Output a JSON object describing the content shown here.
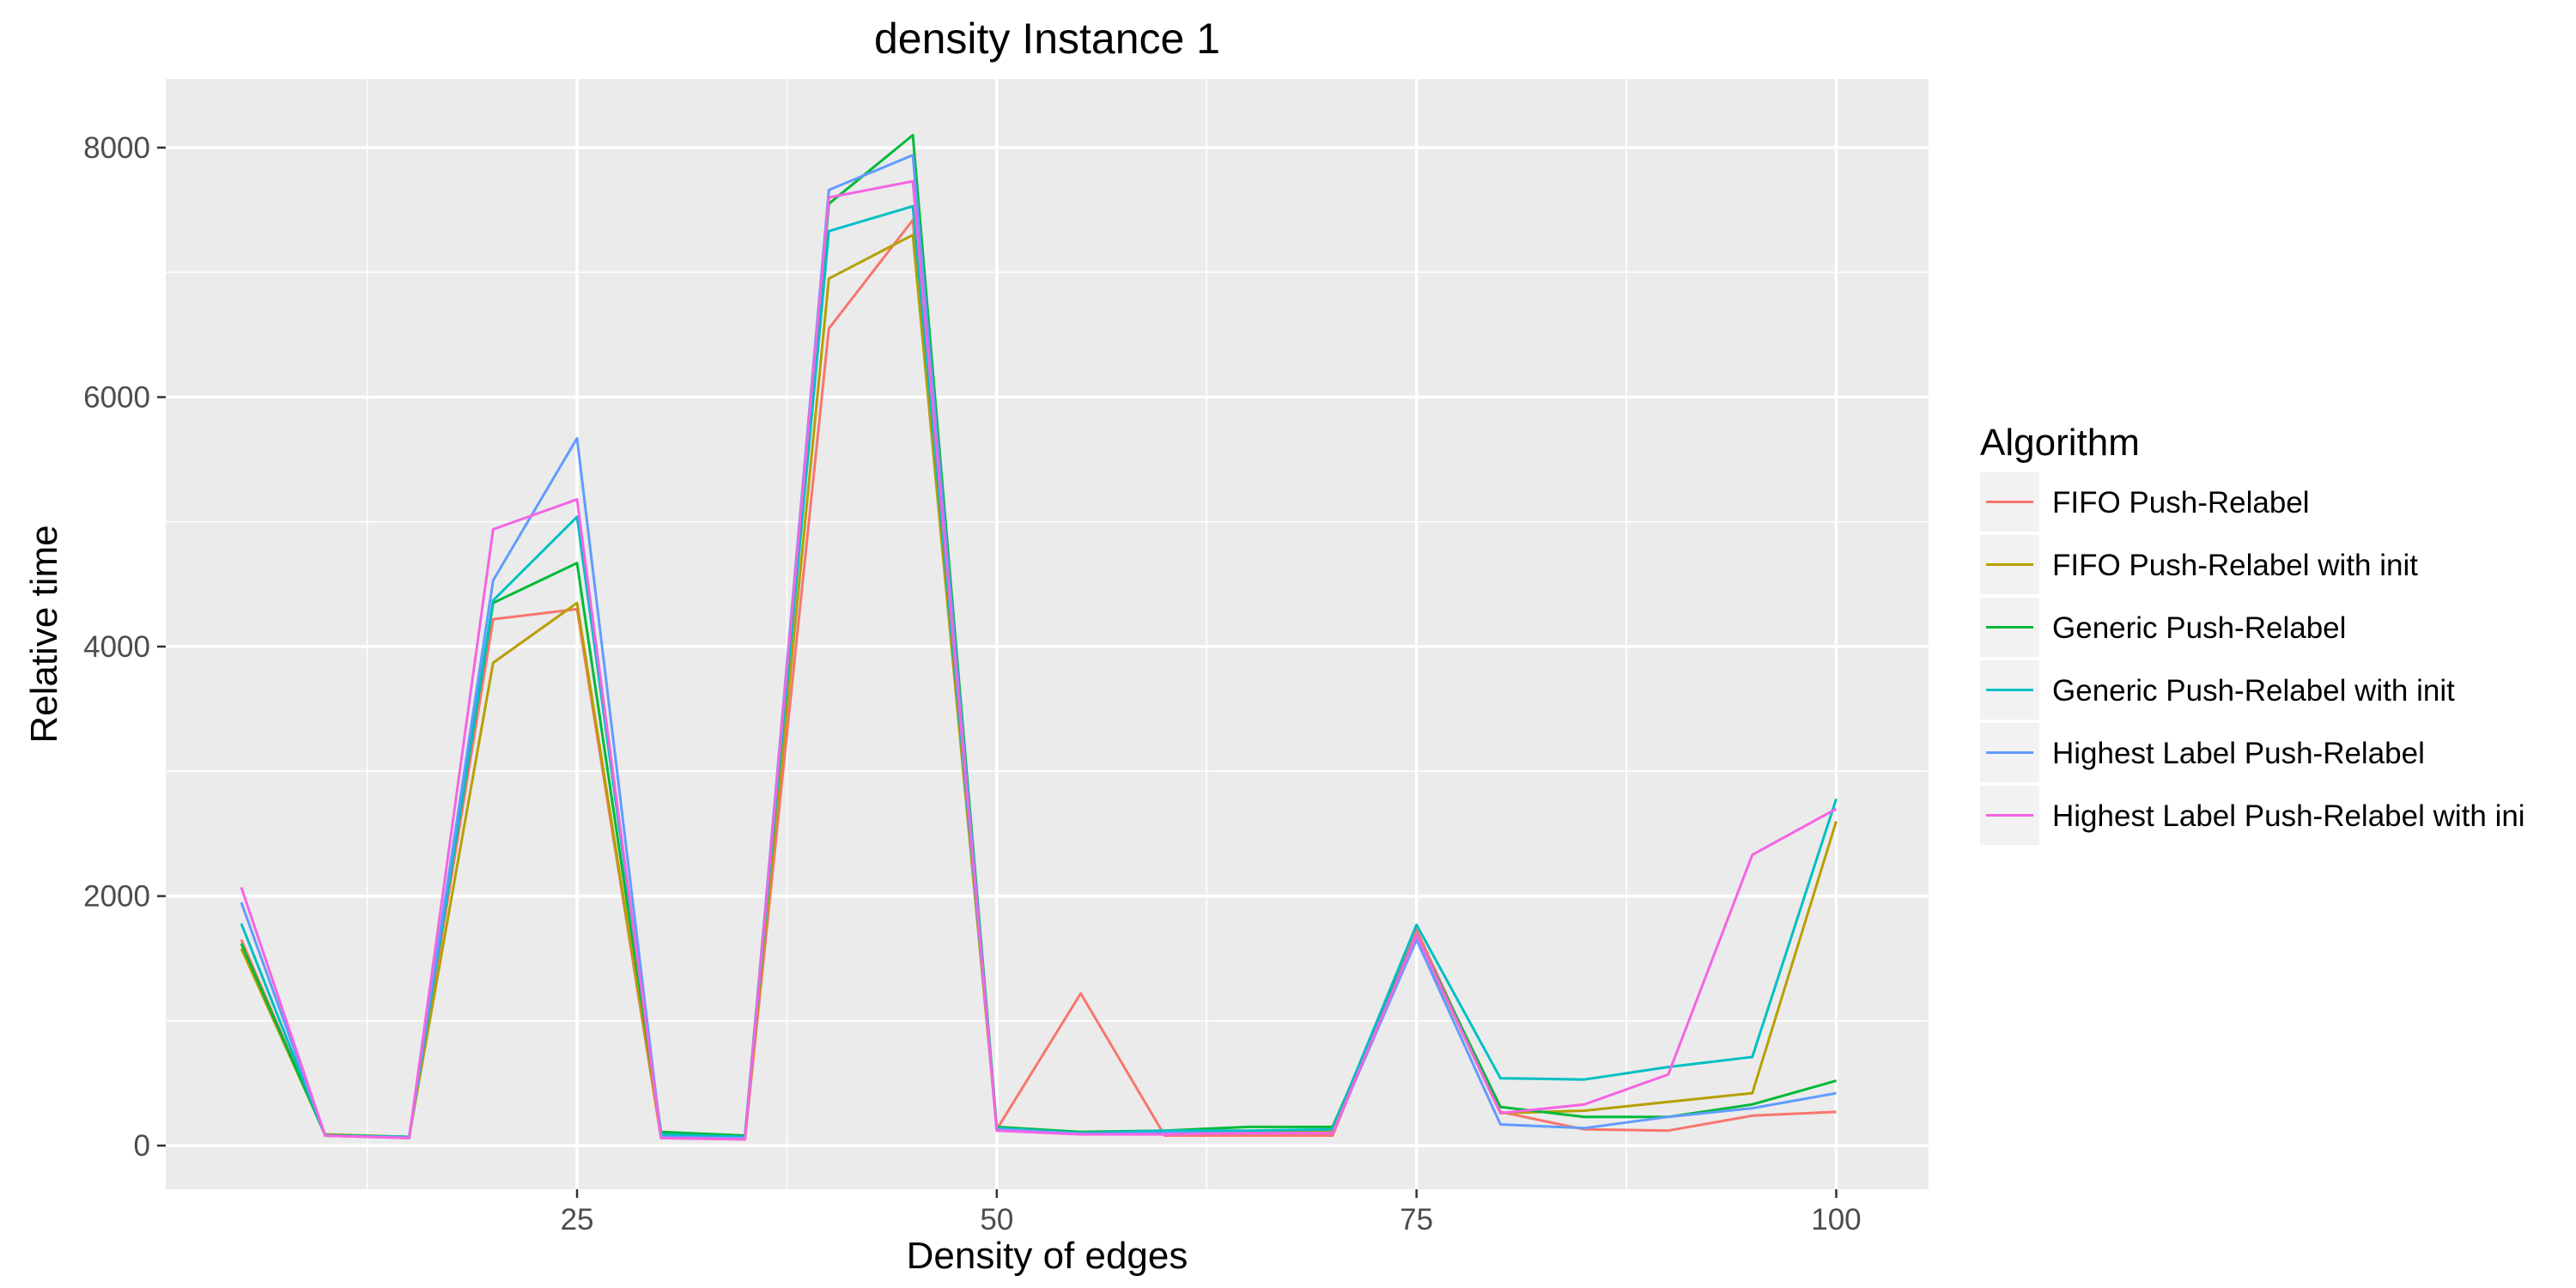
{
  "chart_data": {
    "type": "line",
    "title": "density Instance 1",
    "xlabel": "Density of edges",
    "ylabel": "Relative time",
    "xlim": [
      0.5,
      105.5
    ],
    "ylim": [
      -350,
      8550
    ],
    "x_ticks": [
      25,
      50,
      75,
      100
    ],
    "x_minor": [
      12.5,
      37.5,
      62.5,
      87.5
    ],
    "y_ticks": [
      0,
      2000,
      4000,
      6000,
      8000
    ],
    "y_minor": [
      1000,
      3000,
      5000,
      7000
    ],
    "grid": true,
    "legend": {
      "title": "Algorithm",
      "position": "right"
    },
    "x": [
      5,
      10,
      15,
      20,
      25,
      30,
      35,
      40,
      45,
      50,
      55,
      60,
      65,
      70,
      75,
      80,
      85,
      90,
      95,
      100
    ],
    "series": [
      {
        "name": "FIFO Push-Relabel",
        "color": "#F8766D",
        "values": [
          1650,
          80,
          60,
          4220,
          4300,
          60,
          50,
          6550,
          7420,
          130,
          1220,
          80,
          80,
          80,
          1730,
          270,
          130,
          120,
          240,
          270
        ]
      },
      {
        "name": "FIFO Push-Relabel with init",
        "color": "#B79F00",
        "values": [
          1580,
          90,
          70,
          3870,
          4350,
          80,
          60,
          6950,
          7300,
          140,
          100,
          90,
          100,
          120,
          1680,
          260,
          280,
          350,
          420,
          2600
        ]
      },
      {
        "name": "Generic Push-Relabel",
        "color": "#00BA38",
        "values": [
          1620,
          85,
          70,
          4350,
          4670,
          110,
          80,
          7550,
          8100,
          150,
          110,
          120,
          150,
          150,
          1690,
          310,
          230,
          230,
          330,
          520
        ]
      },
      {
        "name": "Generic Push-Relabel with init",
        "color": "#00BFC4",
        "values": [
          1780,
          80,
          70,
          4370,
          5040,
          90,
          70,
          7330,
          7530,
          140,
          100,
          120,
          120,
          130,
          1770,
          540,
          530,
          630,
          710,
          2780
        ]
      },
      {
        "name": "Highest Label Push-Relabel",
        "color": "#619CFF",
        "values": [
          1950,
          80,
          65,
          4530,
          5670,
          70,
          60,
          7660,
          7940,
          130,
          95,
          100,
          100,
          100,
          1650,
          170,
          140,
          230,
          300,
          420
        ]
      },
      {
        "name": "Highest Label Push-Relabel with ini",
        "color": "#F564E3",
        "values": [
          2070,
          80,
          60,
          4940,
          5180,
          60,
          50,
          7600,
          7730,
          120,
          90,
          90,
          100,
          100,
          1690,
          260,
          330,
          570,
          2330,
          2700
        ]
      }
    ]
  }
}
